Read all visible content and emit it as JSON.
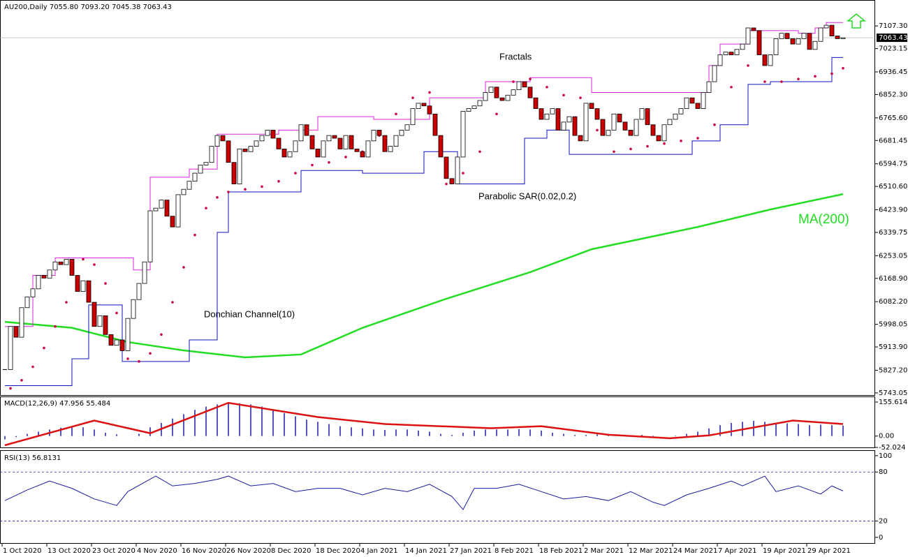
{
  "chart_data": [
    {
      "type": "candlestick",
      "header": "AU200,Daily  7055.80 7093.20 7045.38 7063.43",
      "annotations": [
        "Fractals",
        "Parabolic SAR(0.02,0.2)",
        "Donchian Channel(10)",
        "MA(200)"
      ],
      "ylim": [
        5735,
        7183
      ],
      "yticks": [
        {
          "value": 7107.3,
          "label": "7107.30"
        },
        {
          "value": 7023.15,
          "label": "7023.15"
        },
        {
          "value": 6936.45,
          "label": "6936.45"
        },
        {
          "value": 6852.3,
          "label": "6852.30"
        },
        {
          "value": 6765.6,
          "label": "6765.60"
        },
        {
          "value": 6681.45,
          "label": "6681.45"
        },
        {
          "value": 6594.75,
          "label": "6594.75"
        },
        {
          "value": 6510.6,
          "label": "6510.60"
        },
        {
          "value": 6423.9,
          "label": "6423.90"
        },
        {
          "value": 6339.75,
          "label": "6339.75"
        },
        {
          "value": 6253.05,
          "label": "6253.05"
        },
        {
          "value": 6168.9,
          "label": "6168.90"
        },
        {
          "value": 6082.2,
          "label": "6082.20"
        },
        {
          "value": 5998.05,
          "label": "5998.05"
        },
        {
          "value": 5913.9,
          "label": "5913.90"
        },
        {
          "value": 5827.2,
          "label": "5827.20"
        },
        {
          "value": 5743.05,
          "label": "5743.05"
        }
      ],
      "last_price": {
        "value": 7063.43,
        "label": "7063.43"
      },
      "xticks": [
        {
          "value": 0,
          "label": "1 Oct 2020"
        },
        {
          "value": 8,
          "label": "13 Oct 2020"
        },
        {
          "value": 16,
          "label": "23 Oct 2020"
        },
        {
          "value": 24,
          "label": "4 Nov 2020"
        },
        {
          "value": 32,
          "label": "16 Nov 2020"
        },
        {
          "value": 40,
          "label": "26 Nov 2020"
        },
        {
          "value": 48,
          "label": "8 Dec 2020"
        },
        {
          "value": 56,
          "label": "18 Dec 2020"
        },
        {
          "value": 64,
          "label": "4 Jan 2021"
        },
        {
          "value": 72,
          "label": "14 Jan 2021"
        },
        {
          "value": 80,
          "label": "27 Jan 2021"
        },
        {
          "value": 88,
          "label": "8 Feb 2021"
        },
        {
          "value": 96,
          "label": "18 Feb 2021"
        },
        {
          "value": 104,
          "label": "2 Mar 2021"
        },
        {
          "value": 112,
          "label": "12 Mar 2021"
        },
        {
          "value": 120,
          "label": "24 Mar 2021"
        },
        {
          "value": 128,
          "label": "7 Apr 2021"
        },
        {
          "value": 136,
          "label": "19 Apr 2021"
        },
        {
          "value": 144,
          "label": "29 Apr 2021"
        }
      ],
      "close": [
        5830,
        5990,
        5950,
        6060,
        6100,
        6130,
        6180,
        6170,
        6200,
        6230,
        6220,
        6240,
        6180,
        6120,
        6160,
        6080,
        5990,
        6030,
        5960,
        5920,
        5940,
        5900,
        6020,
        6090,
        6150,
        6230,
        6420,
        6430,
        6460,
        6400,
        6360,
        6480,
        6500,
        6530,
        6560,
        6590,
        6600,
        6660,
        6700,
        6680,
        6600,
        6520,
        6650,
        6640,
        6660,
        6680,
        6700,
        6720,
        6690,
        6650,
        6620,
        6640,
        6680,
        6740,
        6700,
        6650,
        6620,
        6680,
        6700,
        6690,
        6650,
        6700,
        6650,
        6640,
        6620,
        6680,
        6720,
        6700,
        6640,
        6660,
        6700,
        6720,
        6740,
        6800,
        6820,
        6810,
        6780,
        6700,
        6620,
        6540,
        6520,
        6620,
        6790,
        6800,
        6810,
        6830,
        6860,
        6880,
        6840,
        6830,
        6850,
        6870,
        6900,
        6880,
        6840,
        6800,
        6760,
        6780,
        6800,
        6720,
        6750,
        6770,
        6700,
        6680,
        6820,
        6800,
        6760,
        6700,
        6720,
        6780,
        6750,
        6720,
        6700,
        6760,
        6800,
        6740,
        6700,
        6680,
        6740,
        6760,
        6780,
        6800,
        6840,
        6820,
        6800,
        6860,
        6900,
        6960,
        7000,
        7010,
        7000,
        7020,
        7040,
        7100,
        7090,
        7000,
        6960,
        7000,
        7060,
        7080,
        7060,
        7040,
        7060,
        7080,
        7020,
        7050,
        7100,
        7110,
        7070,
        7060,
        7063.43
      ],
      "up_color": "#ffffff",
      "down_color": "#cc0000",
      "series": [
        {
          "name": "MA(200)",
          "kind": "line",
          "color": "#22dd22",
          "x": [
            0,
            12,
            22,
            32,
            43,
            53,
            64,
            79,
            94,
            105,
            124,
            137,
            150
          ],
          "values": [
            6007,
            5985,
            5932,
            5901,
            5875,
            5886,
            5985,
            6093,
            6192,
            6277,
            6360,
            6425,
            6482
          ]
        },
        {
          "name": "Donchian upper",
          "kind": "step",
          "color": "#dd22dd",
          "x": [
            0,
            5,
            9,
            23,
            26,
            33,
            38,
            49,
            56,
            66,
            76,
            86,
            94,
            105,
            126,
            128,
            133,
            142,
            145,
            147,
            150
          ],
          "values": [
            5990,
            6180,
            6245,
            6200,
            6545,
            6575,
            6705,
            6720,
            6770,
            6760,
            6840,
            6900,
            6915,
            6860,
            6960,
            7040,
            7090,
            7080,
            7100,
            7120,
            7120
          ]
        },
        {
          "name": "Donchian lower",
          "kind": "step",
          "color": "#1111bb",
          "x": [
            0,
            12,
            15,
            21,
            33,
            38,
            40,
            53,
            64,
            75,
            81,
            93,
            97,
            101,
            123,
            128,
            133,
            137,
            146,
            148,
            150
          ],
          "values": [
            5770,
            5870,
            6070,
            5860,
            5940,
            6340,
            6490,
            6570,
            6560,
            6640,
            6520,
            6690,
            6720,
            6630,
            6680,
            6740,
            6890,
            6900,
            6900,
            6990,
            6990
          ]
        },
        {
          "name": "Parabolic SAR",
          "kind": "dots",
          "color": "#cc0044",
          "x": [
            1,
            3,
            5,
            7,
            9,
            11,
            14,
            16,
            18,
            20,
            22,
            24,
            26,
            28,
            30,
            32,
            34,
            36,
            38,
            40,
            43,
            46,
            49,
            52,
            55,
            58,
            61,
            64,
            67,
            70,
            73,
            76,
            79,
            82,
            85,
            88,
            91,
            94,
            97,
            100,
            103,
            106,
            109,
            112,
            115,
            118,
            121,
            124,
            127,
            130,
            133,
            136,
            139,
            142,
            145,
            148,
            150
          ],
          "values": [
            5760,
            5790,
            5840,
            5910,
            5990,
            6080,
            6240,
            6220,
            6150,
            6040,
            5870,
            5860,
            5890,
            5960,
            6080,
            6210,
            6330,
            6430,
            6470,
            6490,
            6500,
            6510,
            6530,
            6560,
            6590,
            6600,
            6620,
            6640,
            6700,
            6780,
            6840,
            6860,
            6520,
            6560,
            6640,
            6780,
            6900,
            6910,
            6880,
            6850,
            6840,
            6720,
            6640,
            6650,
            6660,
            6670,
            6680,
            6690,
            6740,
            6880,
            6960,
            6900,
            6900,
            6910,
            6920,
            6930,
            6950
          ]
        }
      ]
    },
    {
      "type": "macd",
      "header": "MACD(12,26,9) 47.956 55.484",
      "ylim": [
        -52.024,
        178
      ],
      "yticks": [
        {
          "value": 155.614,
          "label": "155.614"
        },
        {
          "value": 0,
          "label": "0.00"
        },
        {
          "value": -52.024,
          "label": "-52.024"
        }
      ],
      "series": [
        {
          "name": "MACD",
          "kind": "hist",
          "color": "#1a1aa0",
          "x": [
            0,
            2,
            4,
            6,
            8,
            10,
            12,
            14,
            16,
            18,
            20,
            22,
            24,
            26,
            28,
            30,
            32,
            34,
            36,
            38,
            40,
            42,
            44,
            46,
            48,
            50,
            52,
            54,
            56,
            58,
            60,
            62,
            64,
            66,
            68,
            70,
            72,
            74,
            76,
            78,
            80,
            82,
            84,
            86,
            88,
            90,
            92,
            94,
            96,
            98,
            100,
            102,
            104,
            106,
            108,
            110,
            112,
            114,
            116,
            118,
            120,
            122,
            124,
            126,
            128,
            130,
            132,
            134,
            136,
            138,
            140,
            142,
            144,
            146,
            148,
            150
          ],
          "values": [
            -15,
            -5,
            10,
            20,
            30,
            38,
            40,
            40,
            30,
            15,
            8,
            0,
            10,
            40,
            60,
            80,
            100,
            120,
            135,
            145,
            150,
            150,
            145,
            135,
            120,
            105,
            90,
            75,
            65,
            55,
            45,
            40,
            35,
            30,
            28,
            30,
            30,
            25,
            20,
            10,
            5,
            15,
            25,
            30,
            30,
            30,
            32,
            30,
            25,
            15,
            10,
            5,
            5,
            8,
            5,
            0,
            2,
            5,
            2,
            0,
            2,
            10,
            20,
            35,
            50,
            60,
            65,
            70,
            65,
            60,
            58,
            55,
            50,
            52,
            50,
            48
          ]
        },
        {
          "name": "Signal",
          "kind": "line",
          "color": "#dd1111",
          "x": [
            0,
            16,
            26,
            40,
            56,
            68,
            87,
            96,
            108,
            119,
            126,
            141,
            150
          ],
          "values": [
            -42,
            71,
            13,
            152,
            87,
            55,
            36,
            45,
            6,
            -10,
            3,
            71,
            55
          ]
        }
      ]
    },
    {
      "type": "line",
      "header": "RSI(13) 56.8131",
      "ylim": [
        -7,
        105
      ],
      "yticks": [
        100,
        80,
        20,
        0
      ],
      "levels": [
        80,
        20
      ],
      "series": [
        {
          "name": "RSI",
          "color": "#1a1aa0",
          "x": [
            0,
            4,
            8,
            12,
            16,
            20,
            22,
            27,
            30,
            34,
            38,
            40,
            44,
            48,
            52,
            56,
            60,
            64,
            68,
            72,
            76,
            80,
            82,
            84,
            88,
            92,
            96,
            100,
            104,
            108,
            112,
            116,
            118,
            122,
            126,
            130,
            132,
            136,
            138,
            142,
            146,
            148,
            150
          ],
          "values": [
            45,
            58,
            69,
            60,
            47,
            39,
            56,
            75,
            63,
            66,
            71,
            75,
            63,
            66,
            56,
            60,
            60,
            52,
            60,
            56,
            65,
            50,
            34,
            60,
            60,
            65,
            56,
            47,
            50,
            45,
            56,
            43,
            39,
            52,
            60,
            69,
            63,
            75,
            56,
            63,
            53,
            63,
            56.8131
          ]
        }
      ]
    }
  ]
}
